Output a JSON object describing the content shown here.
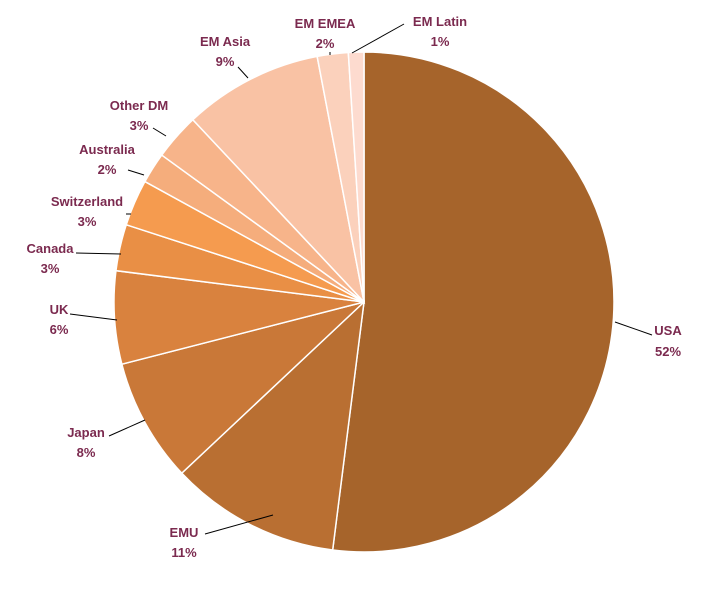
{
  "chart_data": {
    "type": "pie",
    "title": "",
    "label_color": "#7b2a4f",
    "slices": [
      {
        "label": "USA",
        "value": 52,
        "display": "52%",
        "color": "#a6642b"
      },
      {
        "label": "EMU",
        "value": 11,
        "display": "11%",
        "color": "#b96f32"
      },
      {
        "label": "Japan",
        "value": 8,
        "display": "8%",
        "color": "#c97838"
      },
      {
        "label": "UK",
        "value": 6,
        "display": "6%",
        "color": "#d9823e"
      },
      {
        "label": "Canada",
        "value": 3,
        "display": "3%",
        "color": "#e98f45"
      },
      {
        "label": "Switzerland",
        "value": 3,
        "display": "3%",
        "color": "#f59b4f"
      },
      {
        "label": "Australia",
        "value": 2,
        "display": "2%",
        "color": "#f5ad7c"
      },
      {
        "label": "Other DM",
        "value": 3,
        "display": "3%",
        "color": "#f7b48a"
      },
      {
        "label": "EM Asia",
        "value": 9,
        "display": "9%",
        "color": "#f9c2a4"
      },
      {
        "label": "EM EMEA",
        "value": 2,
        "display": "2%",
        "color": "#fbd1bc"
      },
      {
        "label": "EM Latin",
        "value": 1,
        "display": "1%",
        "color": "#fddbcf"
      }
    ]
  }
}
